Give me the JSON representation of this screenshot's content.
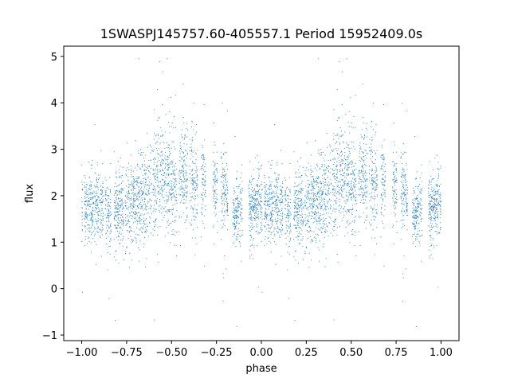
{
  "chart_data": {
    "type": "scatter",
    "title": "1SWASPJ145757.60-405557.1 Period 15952409.0s",
    "xlabel": "phase",
    "ylabel": "flux",
    "xlim": [
      -1.1,
      1.1
    ],
    "ylim": [
      -1.12,
      5.22
    ],
    "x_ticks": [
      -1.0,
      -0.75,
      -0.5,
      -0.25,
      0.0,
      0.25,
      0.5,
      0.75,
      1.0
    ],
    "x_tick_labels": [
      "−1.00",
      "−0.75",
      "−0.50",
      "−0.25",
      "0.00",
      "0.25",
      "0.50",
      "0.75",
      "1.00"
    ],
    "y_ticks": [
      -1,
      0,
      1,
      2,
      3,
      4,
      5
    ],
    "y_tick_labels": [
      "−1",
      "0",
      "1",
      "2",
      "3",
      "4",
      "5"
    ],
    "grid": false,
    "marker_color": "#1f77b4",
    "series": [
      {
        "phase_range": [
          -1.0,
          1.0
        ],
        "flux_profile": [
          {
            "phase": 0.0,
            "median": 1.7,
            "spread": 0.35
          },
          {
            "phase": 0.05,
            "median": 1.75,
            "spread": 0.4
          },
          {
            "phase": 0.1,
            "median": 1.8,
            "spread": 0.4
          },
          {
            "phase": 0.15,
            "median": 1.65,
            "spread": 0.4
          },
          {
            "phase": 0.2,
            "median": 1.7,
            "spread": 0.4
          },
          {
            "phase": 0.25,
            "median": 1.75,
            "spread": 0.45
          },
          {
            "phase": 0.3,
            "median": 1.85,
            "spread": 0.45
          },
          {
            "phase": 0.35,
            "median": 2.0,
            "spread": 0.45
          },
          {
            "phase": 0.4,
            "median": 2.15,
            "spread": 0.5
          },
          {
            "phase": 0.45,
            "median": 2.5,
            "spread": 0.55
          },
          {
            "phase": 0.5,
            "median": 2.3,
            "spread": 0.55
          },
          {
            "phase": 0.55,
            "median": 2.4,
            "spread": 0.55
          },
          {
            "phase": 0.6,
            "median": 2.45,
            "spread": 0.5
          },
          {
            "phase": 0.65,
            "median": 2.2,
            "spread": 0.45
          },
          {
            "phase": 0.7,
            "median": 2.4,
            "spread": 0.4
          },
          {
            "phase": 0.75,
            "median": 2.2,
            "spread": 0.4
          },
          {
            "phase": 0.8,
            "median": 2.1,
            "spread": 0.4
          },
          {
            "phase": 0.85,
            "median": 1.6,
            "spread": 0.3
          },
          {
            "phase": 0.9,
            "median": 1.65,
            "spread": 0.35
          },
          {
            "phase": 0.95,
            "median": 1.75,
            "spread": 0.4
          },
          {
            "phase": 1.0,
            "median": 1.8,
            "spread": 0.4
          }
        ],
        "observing_gaps": [
          [
            0.005,
            0.015
          ],
          [
            0.12,
            0.13
          ],
          [
            0.165,
            0.18
          ],
          [
            0.235,
            0.242
          ],
          [
            0.39,
            0.395
          ],
          [
            0.53,
            0.54
          ],
          [
            0.59,
            0.6
          ],
          [
            0.645,
            0.665
          ],
          [
            0.69,
            0.73
          ],
          [
            0.755,
            0.775
          ],
          [
            0.815,
            0.84
          ],
          [
            0.895,
            0.93
          ]
        ],
        "outlier_extremes": {
          "max": 4.95,
          "min": -0.82
        }
      }
    ]
  }
}
